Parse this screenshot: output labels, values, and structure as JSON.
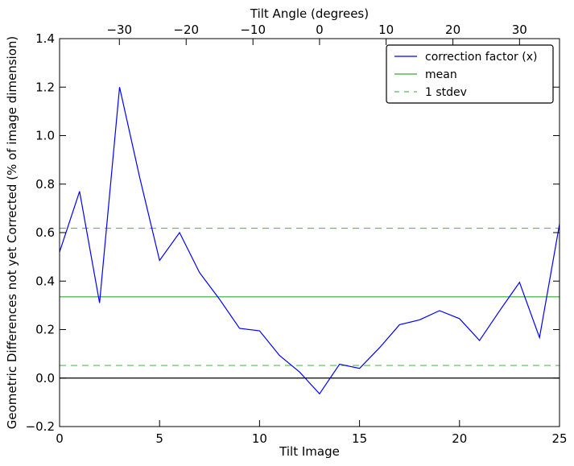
{
  "chart_data": {
    "type": "line",
    "xlabel": "Tilt Image",
    "ylabel": "Geometric Differences not yet Corrected (% of image dimension)",
    "top_xlabel": "Tilt Angle (degrees)",
    "xlim": [
      0,
      25
    ],
    "ylim": [
      -0.2,
      1.4
    ],
    "x_ticks": [
      0,
      5,
      10,
      15,
      20,
      25
    ],
    "x_tick_labels": [
      "0",
      "5",
      "10",
      "15",
      "20",
      "25"
    ],
    "y_ticks": [
      -0.2,
      0.0,
      0.2,
      0.4,
      0.6,
      0.8,
      1.0,
      1.2,
      1.4
    ],
    "y_tick_labels": [
      "−0.2",
      "0.0",
      "0.2",
      "0.4",
      "0.6",
      "0.8",
      "1.0",
      "1.2",
      "1.4"
    ],
    "top_x_ticks_image_units": [
      2.99,
      6.33,
      9.67,
      13.0,
      16.33,
      19.67,
      23.0
    ],
    "top_x_tick_labels": [
      "−30",
      "−20",
      "−10",
      "0",
      "10",
      "20",
      "30"
    ],
    "series": [
      {
        "name": "correction factor (x)",
        "color": "#0000ff",
        "style": "solid",
        "x": [
          0,
          1,
          2,
          3,
          4,
          5,
          6,
          7,
          8,
          9,
          10,
          11,
          12,
          13,
          14,
          15,
          16,
          17,
          18,
          19,
          20,
          21,
          22,
          23,
          24,
          25
        ],
        "y": [
          0.52,
          0.77,
          0.31,
          1.2,
          0.83,
          0.485,
          0.6,
          0.435,
          0.325,
          0.205,
          0.195,
          0.093,
          0.025,
          -0.065,
          0.057,
          0.04,
          0.125,
          0.22,
          0.24,
          0.278,
          0.245,
          0.155,
          0.277,
          0.395,
          0.167,
          0.635
        ]
      },
      {
        "name": "mean",
        "color": "#33aa33",
        "style": "solid",
        "value": 0.335
      },
      {
        "name": "1 stdev",
        "color": "#55bb55",
        "style": "dashed",
        "values": [
          0.052,
          0.618
        ]
      }
    ],
    "zero_line": {
      "value": 0.0,
      "color": "#000000"
    },
    "grid": false,
    "legend_position": "top-right"
  }
}
